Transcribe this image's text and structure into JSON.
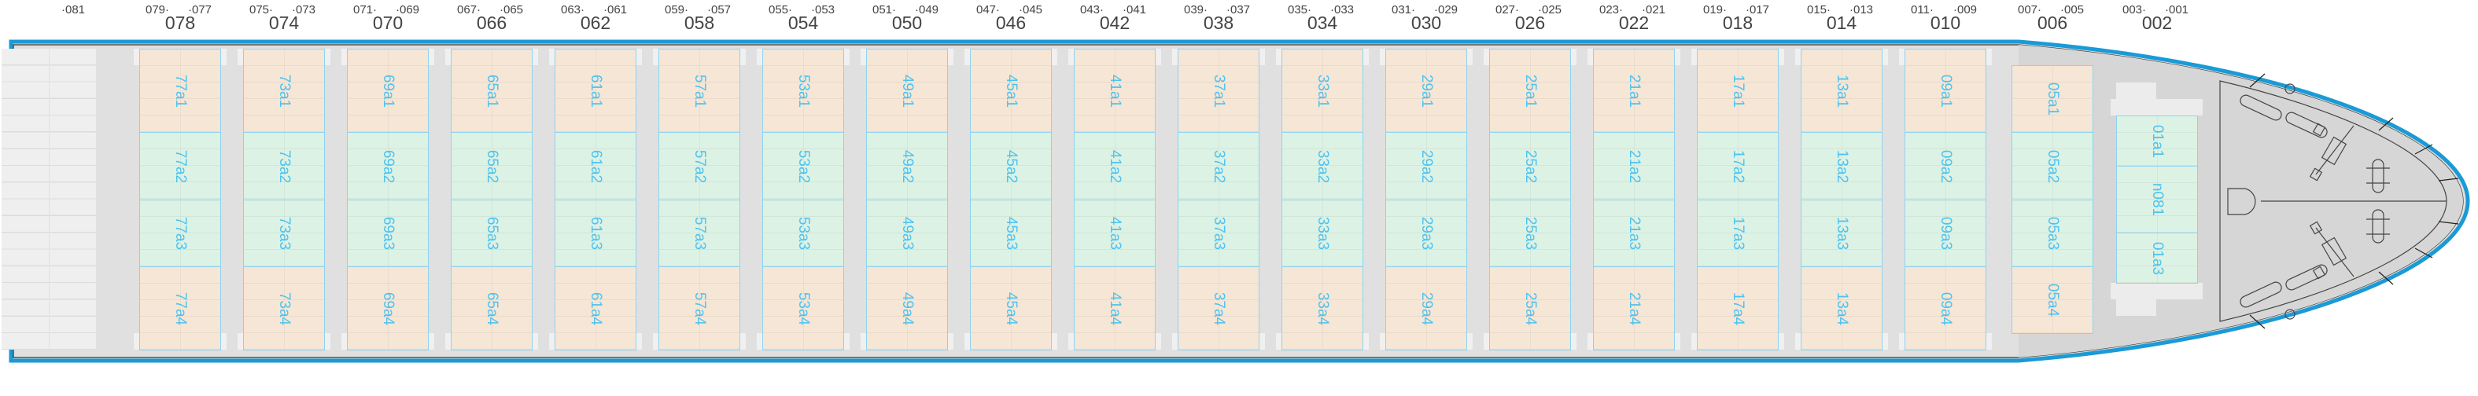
{
  "colors": {
    "hull_stroke": "#1a9ad6",
    "deck": "#e0e0e0",
    "bow_deck": "#d6d6d6",
    "cell_orange": "#f5e6d6",
    "cell_green": "#dcf2e4",
    "cell_border": "#8fd3f0",
    "cell_text": "#4ec3f0"
  },
  "stern_label": "·081",
  "bays": [
    {
      "bay": "078",
      "left": "079·",
      "right": "·077",
      "cells": [
        "77a1",
        "77a2",
        "77a3",
        "77a4"
      ]
    },
    {
      "bay": "074",
      "left": "075·",
      "right": "·073",
      "cells": [
        "73a1",
        "73a2",
        "73a3",
        "73a4"
      ]
    },
    {
      "bay": "070",
      "left": "071·",
      "right": "·069",
      "cells": [
        "69a1",
        "69a2",
        "69a3",
        "69a4"
      ]
    },
    {
      "bay": "066",
      "left": "067·",
      "right": "·065",
      "cells": [
        "65a1",
        "65a2",
        "65a3",
        "65a4"
      ]
    },
    {
      "bay": "062",
      "left": "063·",
      "right": "·061",
      "cells": [
        "61a1",
        "61a2",
        "61a3",
        "61a4"
      ]
    },
    {
      "bay": "058",
      "left": "059·",
      "right": "·057",
      "cells": [
        "57a1",
        "57a2",
        "57a3",
        "57a4"
      ]
    },
    {
      "bay": "054",
      "left": "055·",
      "right": "·053",
      "cells": [
        "53a1",
        "53a2",
        "53a3",
        "53a4"
      ]
    },
    {
      "bay": "050",
      "left": "051·",
      "right": "·049",
      "cells": [
        "49a1",
        "49a2",
        "49a3",
        "49a4"
      ]
    },
    {
      "bay": "046",
      "left": "047·",
      "right": "·045",
      "cells": [
        "45a1",
        "45a2",
        "45a3",
        "45a4"
      ]
    },
    {
      "bay": "042",
      "left": "043·",
      "right": "·041",
      "cells": [
        "41a1",
        "41a2",
        "41a3",
        "41a4"
      ]
    },
    {
      "bay": "038",
      "left": "039·",
      "right": "·037",
      "cells": [
        "37a1",
        "37a2",
        "37a3",
        "37a4"
      ]
    },
    {
      "bay": "034",
      "left": "035·",
      "right": "·033",
      "cells": [
        "33a1",
        "33a2",
        "33a3",
        "33a4"
      ]
    },
    {
      "bay": "030",
      "left": "031·",
      "right": "·029",
      "cells": [
        "29a1",
        "29a2",
        "29a3",
        "29a4"
      ]
    },
    {
      "bay": "026",
      "left": "027·",
      "right": "·025",
      "cells": [
        "25a1",
        "25a2",
        "25a3",
        "25a4"
      ]
    },
    {
      "bay": "022",
      "left": "023·",
      "right": "·021",
      "cells": [
        "21a1",
        "21a2",
        "21a3",
        "21a4"
      ]
    },
    {
      "bay": "018",
      "left": "019·",
      "right": "·017",
      "cells": [
        "17a1",
        "17a2",
        "17a3",
        "17a4"
      ]
    },
    {
      "bay": "014",
      "left": "015·",
      "right": "·013",
      "cells": [
        "13a1",
        "13a2",
        "13a3",
        "13a4"
      ]
    },
    {
      "bay": "010",
      "left": "011·",
      "right": "·009",
      "cells": [
        "09a1",
        "09a2",
        "09a3",
        "09a4"
      ]
    },
    {
      "bay": "006",
      "left": "007·",
      "right": "·005",
      "cells": [
        "05a1",
        "05a2",
        "05a3",
        "05a4"
      ]
    },
    {
      "bay": "002",
      "left": "003·",
      "right": "·001",
      "cells": [
        "01a1",
        "n081",
        "01a3"
      ]
    }
  ]
}
